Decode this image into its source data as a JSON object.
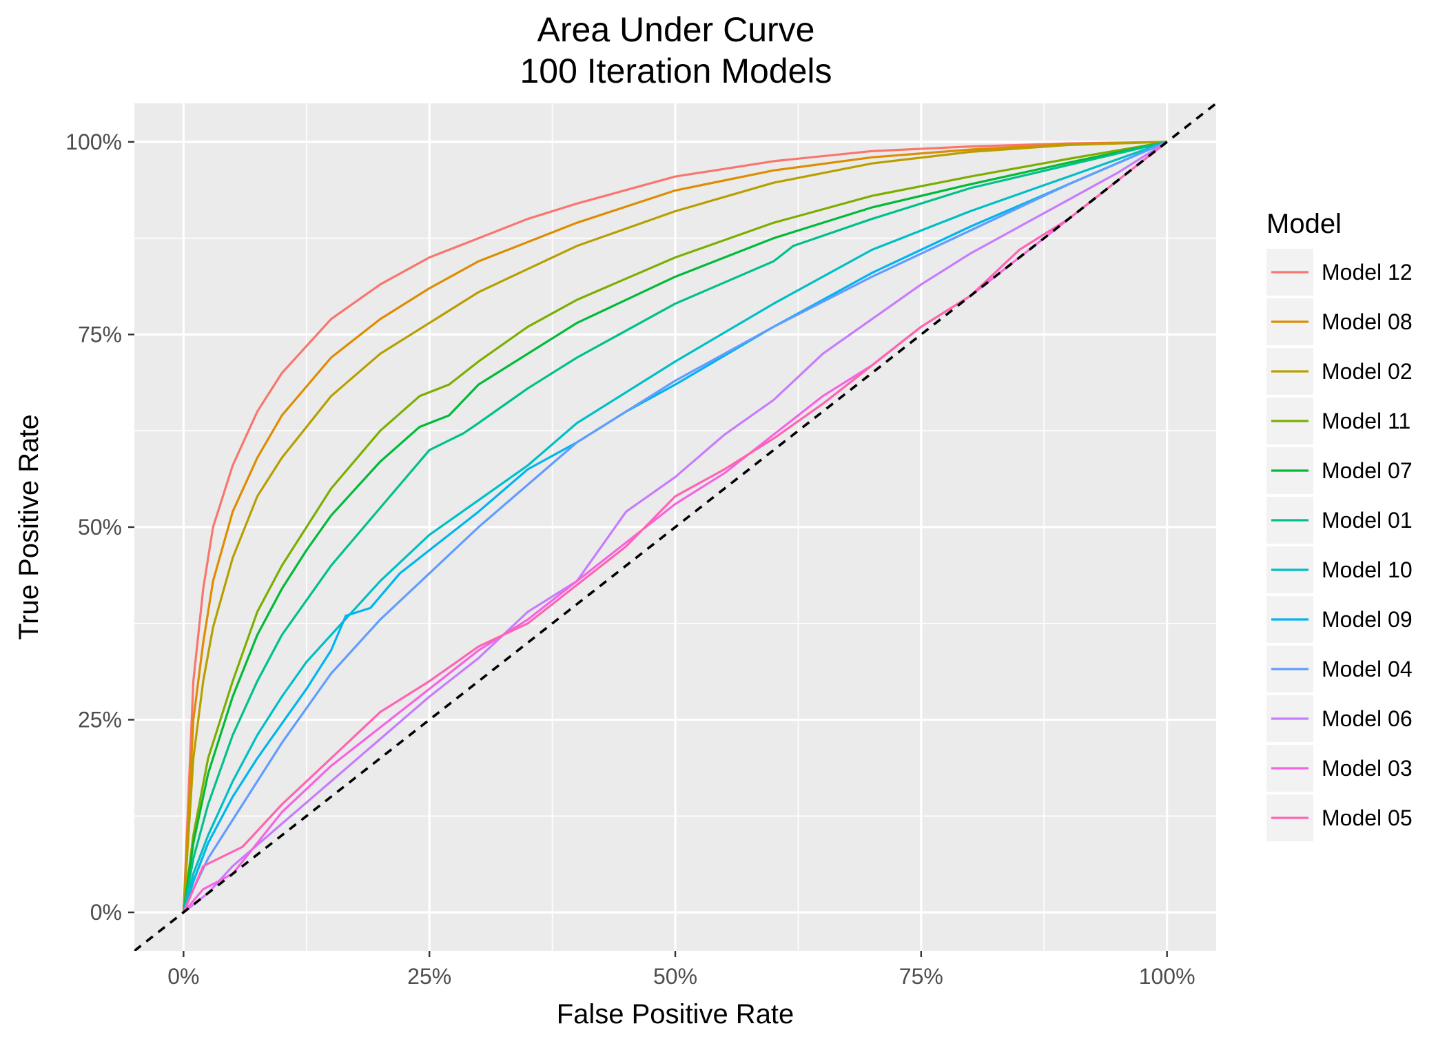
{
  "chart_data": {
    "type": "line",
    "title": "Area Under Curve",
    "subtitle": "100 Iteration Models",
    "xlabel": "False Positive Rate",
    "ylabel": "True Positive Rate",
    "xlim": [
      -0.05,
      1.05
    ],
    "ylim": [
      -0.05,
      1.05
    ],
    "x_ticks": [
      0,
      0.25,
      0.5,
      0.75,
      1
    ],
    "x_tick_labels": [
      "0%",
      "25%",
      "50%",
      "75%",
      "100%"
    ],
    "y_ticks": [
      0,
      0.25,
      0.5,
      0.75,
      1
    ],
    "y_tick_labels": [
      "0%",
      "25%",
      "50%",
      "75%",
      "100%"
    ],
    "grid": true,
    "background": "#EBEBEB",
    "legend_title": "Model",
    "legend_position": "right",
    "reference_line": {
      "type": "diagonal",
      "style": "dashed",
      "color": "#000000"
    },
    "series": [
      {
        "name": "Model 12",
        "color": "#F8766D",
        "points": [
          [
            0,
            0
          ],
          [
            0.01,
            0.3
          ],
          [
            0.02,
            0.42
          ],
          [
            0.03,
            0.5
          ],
          [
            0.05,
            0.58
          ],
          [
            0.075,
            0.65
          ],
          [
            0.1,
            0.7
          ],
          [
            0.15,
            0.77
          ],
          [
            0.2,
            0.815
          ],
          [
            0.25,
            0.85
          ],
          [
            0.3,
            0.875
          ],
          [
            0.35,
            0.9
          ],
          [
            0.4,
            0.92
          ],
          [
            0.5,
            0.955
          ],
          [
            0.6,
            0.975
          ],
          [
            0.7,
            0.988
          ],
          [
            0.8,
            0.994
          ],
          [
            0.9,
            0.998
          ],
          [
            1,
            1
          ]
        ]
      },
      {
        "name": "Model 08",
        "color": "#DE8C00",
        "points": [
          [
            0,
            0
          ],
          [
            0.01,
            0.25
          ],
          [
            0.02,
            0.35
          ],
          [
            0.03,
            0.43
          ],
          [
            0.05,
            0.52
          ],
          [
            0.075,
            0.59
          ],
          [
            0.1,
            0.645
          ],
          [
            0.15,
            0.72
          ],
          [
            0.2,
            0.77
          ],
          [
            0.25,
            0.81
          ],
          [
            0.3,
            0.845
          ],
          [
            0.35,
            0.87
          ],
          [
            0.4,
            0.895
          ],
          [
            0.5,
            0.937
          ],
          [
            0.6,
            0.963
          ],
          [
            0.7,
            0.98
          ],
          [
            0.8,
            0.99
          ],
          [
            0.9,
            0.997
          ],
          [
            1,
            1
          ]
        ]
      },
      {
        "name": "Model 02",
        "color": "#B79F00",
        "points": [
          [
            0,
            0
          ],
          [
            0.01,
            0.2
          ],
          [
            0.02,
            0.3
          ],
          [
            0.03,
            0.37
          ],
          [
            0.05,
            0.46
          ],
          [
            0.075,
            0.54
          ],
          [
            0.1,
            0.59
          ],
          [
            0.15,
            0.67
          ],
          [
            0.2,
            0.725
          ],
          [
            0.25,
            0.765
          ],
          [
            0.3,
            0.805
          ],
          [
            0.35,
            0.835
          ],
          [
            0.4,
            0.865
          ],
          [
            0.5,
            0.91
          ],
          [
            0.6,
            0.947
          ],
          [
            0.7,
            0.972
          ],
          [
            0.8,
            0.987
          ],
          [
            0.9,
            0.996
          ],
          [
            1,
            1
          ]
        ]
      },
      {
        "name": "Model 11",
        "color": "#7CAE00",
        "points": [
          [
            0,
            0
          ],
          [
            0.01,
            0.1
          ],
          [
            0.025,
            0.2
          ],
          [
            0.05,
            0.3
          ],
          [
            0.075,
            0.39
          ],
          [
            0.1,
            0.45
          ],
          [
            0.125,
            0.5
          ],
          [
            0.15,
            0.55
          ],
          [
            0.2,
            0.625
          ],
          [
            0.24,
            0.67
          ],
          [
            0.27,
            0.685
          ],
          [
            0.3,
            0.715
          ],
          [
            0.35,
            0.76
          ],
          [
            0.4,
            0.795
          ],
          [
            0.5,
            0.85
          ],
          [
            0.6,
            0.895
          ],
          [
            0.7,
            0.93
          ],
          [
            0.8,
            0.955
          ],
          [
            0.9,
            0.978
          ],
          [
            1,
            1
          ]
        ]
      },
      {
        "name": "Model 07",
        "color": "#00BA38",
        "points": [
          [
            0,
            0
          ],
          [
            0.01,
            0.09
          ],
          [
            0.025,
            0.18
          ],
          [
            0.05,
            0.28
          ],
          [
            0.075,
            0.36
          ],
          [
            0.1,
            0.42
          ],
          [
            0.125,
            0.47
          ],
          [
            0.15,
            0.515
          ],
          [
            0.2,
            0.585
          ],
          [
            0.24,
            0.63
          ],
          [
            0.27,
            0.645
          ],
          [
            0.3,
            0.685
          ],
          [
            0.35,
            0.725
          ],
          [
            0.4,
            0.765
          ],
          [
            0.5,
            0.825
          ],
          [
            0.6,
            0.875
          ],
          [
            0.7,
            0.915
          ],
          [
            0.8,
            0.945
          ],
          [
            0.9,
            0.973
          ],
          [
            1,
            1
          ]
        ]
      },
      {
        "name": "Model 01",
        "color": "#00C08B",
        "points": [
          [
            0,
            0
          ],
          [
            0.01,
            0.07
          ],
          [
            0.025,
            0.14
          ],
          [
            0.05,
            0.23
          ],
          [
            0.075,
            0.3
          ],
          [
            0.1,
            0.36
          ],
          [
            0.125,
            0.405
          ],
          [
            0.15,
            0.45
          ],
          [
            0.2,
            0.525
          ],
          [
            0.25,
            0.6
          ],
          [
            0.285,
            0.622
          ],
          [
            0.3,
            0.635
          ],
          [
            0.35,
            0.68
          ],
          [
            0.4,
            0.72
          ],
          [
            0.5,
            0.79
          ],
          [
            0.6,
            0.845
          ],
          [
            0.62,
            0.865
          ],
          [
            0.7,
            0.9
          ],
          [
            0.8,
            0.94
          ],
          [
            0.9,
            0.97
          ],
          [
            1,
            1
          ]
        ]
      },
      {
        "name": "Model 10",
        "color": "#00BFC4",
        "points": [
          [
            0,
            0
          ],
          [
            0.01,
            0.05
          ],
          [
            0.025,
            0.1
          ],
          [
            0.05,
            0.17
          ],
          [
            0.075,
            0.23
          ],
          [
            0.1,
            0.28
          ],
          [
            0.125,
            0.325
          ],
          [
            0.15,
            0.36
          ],
          [
            0.2,
            0.43
          ],
          [
            0.25,
            0.49
          ],
          [
            0.3,
            0.535
          ],
          [
            0.35,
            0.58
          ],
          [
            0.4,
            0.635
          ],
          [
            0.5,
            0.715
          ],
          [
            0.6,
            0.79
          ],
          [
            0.7,
            0.86
          ],
          [
            0.8,
            0.91
          ],
          [
            0.9,
            0.955
          ],
          [
            1,
            1
          ]
        ]
      },
      {
        "name": "Model 09",
        "color": "#00B4F0",
        "points": [
          [
            0,
            0
          ],
          [
            0.01,
            0.04
          ],
          [
            0.025,
            0.09
          ],
          [
            0.05,
            0.15
          ],
          [
            0.075,
            0.2
          ],
          [
            0.1,
            0.245
          ],
          [
            0.125,
            0.29
          ],
          [
            0.15,
            0.34
          ],
          [
            0.165,
            0.385
          ],
          [
            0.19,
            0.395
          ],
          [
            0.22,
            0.44
          ],
          [
            0.25,
            0.47
          ],
          [
            0.3,
            0.52
          ],
          [
            0.35,
            0.575
          ],
          [
            0.4,
            0.61
          ],
          [
            0.45,
            0.65
          ],
          [
            0.5,
            0.685
          ],
          [
            0.6,
            0.76
          ],
          [
            0.7,
            0.83
          ],
          [
            0.8,
            0.89
          ],
          [
            0.9,
            0.945
          ],
          [
            1,
            1
          ]
        ]
      },
      {
        "name": "Model 04",
        "color": "#619CFF",
        "points": [
          [
            0,
            0
          ],
          [
            0.01,
            0.03
          ],
          [
            0.025,
            0.07
          ],
          [
            0.05,
            0.12
          ],
          [
            0.075,
            0.17
          ],
          [
            0.1,
            0.22
          ],
          [
            0.125,
            0.265
          ],
          [
            0.15,
            0.31
          ],
          [
            0.2,
            0.38
          ],
          [
            0.25,
            0.44
          ],
          [
            0.3,
            0.5
          ],
          [
            0.35,
            0.555
          ],
          [
            0.4,
            0.61
          ],
          [
            0.5,
            0.69
          ],
          [
            0.6,
            0.76
          ],
          [
            0.7,
            0.825
          ],
          [
            0.8,
            0.885
          ],
          [
            0.9,
            0.945
          ],
          [
            1,
            1
          ]
        ]
      },
      {
        "name": "Model 06",
        "color": "#C77CFF",
        "points": [
          [
            0,
            0
          ],
          [
            0.025,
            0.025
          ],
          [
            0.05,
            0.06
          ],
          [
            0.1,
            0.115
          ],
          [
            0.15,
            0.17
          ],
          [
            0.2,
            0.225
          ],
          [
            0.25,
            0.28
          ],
          [
            0.3,
            0.33
          ],
          [
            0.35,
            0.39
          ],
          [
            0.4,
            0.43
          ],
          [
            0.45,
            0.52
          ],
          [
            0.5,
            0.565
          ],
          [
            0.55,
            0.62
          ],
          [
            0.6,
            0.665
          ],
          [
            0.65,
            0.725
          ],
          [
            0.7,
            0.77
          ],
          [
            0.75,
            0.815
          ],
          [
            0.8,
            0.855
          ],
          [
            0.85,
            0.89
          ],
          [
            0.9,
            0.925
          ],
          [
            0.95,
            0.96
          ],
          [
            1,
            1
          ]
        ]
      },
      {
        "name": "Model 03",
        "color": "#F564E3",
        "points": [
          [
            0,
            0
          ],
          [
            0.02,
            0.03
          ],
          [
            0.05,
            0.05
          ],
          [
            0.1,
            0.13
          ],
          [
            0.15,
            0.19
          ],
          [
            0.2,
            0.24
          ],
          [
            0.25,
            0.29
          ],
          [
            0.3,
            0.34
          ],
          [
            0.35,
            0.38
          ],
          [
            0.4,
            0.43
          ],
          [
            0.45,
            0.48
          ],
          [
            0.5,
            0.53
          ],
          [
            0.55,
            0.57
          ],
          [
            0.6,
            0.62
          ],
          [
            0.65,
            0.67
          ],
          [
            0.7,
            0.71
          ],
          [
            0.75,
            0.76
          ],
          [
            0.8,
            0.8
          ],
          [
            0.85,
            0.85
          ],
          [
            0.9,
            0.9
          ],
          [
            0.95,
            0.95
          ],
          [
            1,
            1
          ]
        ]
      },
      {
        "name": "Model 05",
        "color": "#FF64B0",
        "points": [
          [
            0,
            0
          ],
          [
            0.02,
            0.06
          ],
          [
            0.06,
            0.085
          ],
          [
            0.1,
            0.14
          ],
          [
            0.15,
            0.2
          ],
          [
            0.2,
            0.26
          ],
          [
            0.25,
            0.3
          ],
          [
            0.3,
            0.345
          ],
          [
            0.35,
            0.375
          ],
          [
            0.4,
            0.425
          ],
          [
            0.45,
            0.475
          ],
          [
            0.5,
            0.54
          ],
          [
            0.55,
            0.575
          ],
          [
            0.6,
            0.615
          ],
          [
            0.65,
            0.66
          ],
          [
            0.7,
            0.71
          ],
          [
            0.75,
            0.76
          ],
          [
            0.8,
            0.8
          ],
          [
            0.85,
            0.86
          ],
          [
            0.9,
            0.9
          ],
          [
            0.95,
            0.95
          ],
          [
            1,
            1
          ]
        ]
      }
    ]
  }
}
